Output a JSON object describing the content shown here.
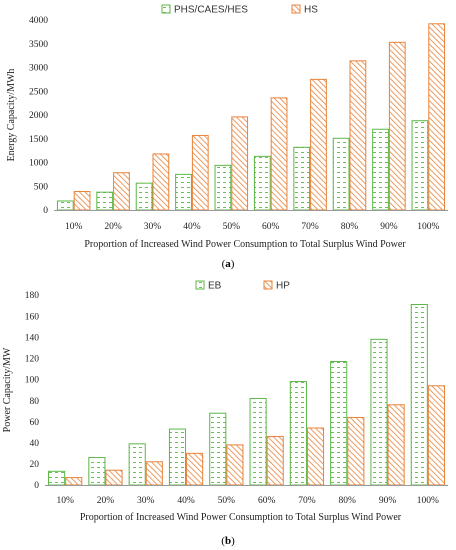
{
  "colors": {
    "green": "#5bb746",
    "orange": "#e8833a",
    "axis": "#999999",
    "grid": "#d9d9d9"
  },
  "chart_data": [
    {
      "type": "bar",
      "panel_label": "(a)",
      "categories": [
        "10%",
        "20%",
        "30%",
        "40%",
        "50%",
        "60%",
        "70%",
        "80%",
        "90%",
        "100%"
      ],
      "series": [
        {
          "name": "PHS/CAES/HES",
          "color": "#5bb746",
          "pattern": "dashes",
          "values": [
            190,
            375,
            565,
            750,
            940,
            1130,
            1320,
            1510,
            1700,
            1880
          ]
        },
        {
          "name": "HS",
          "color": "#e8833a",
          "pattern": "diagonal",
          "values": [
            390,
            785,
            1180,
            1570,
            1960,
            2360,
            2750,
            3140,
            3530,
            3920
          ]
        }
      ],
      "xlabel": "Proportion of Increased Wind Power Consumption to Total Surplus Wind Power",
      "ylabel": "Energy Capacity/MWh",
      "ylim": [
        0,
        4000
      ],
      "yticks": [
        "0",
        "500",
        "1000",
        "1500",
        "2000",
        "2500",
        "3000",
        "3500",
        "4000"
      ],
      "grid": "none",
      "legend": "top-center"
    },
    {
      "type": "bar",
      "panel_label": "(b)",
      "categories": [
        "10%",
        "20%",
        "30%",
        "40%",
        "50%",
        "60%",
        "70%",
        "80%",
        "90%",
        "100%"
      ],
      "series": [
        {
          "name": "EB",
          "color": "#5bb746",
          "pattern": "dashes",
          "values": [
            13,
            26,
            39,
            53,
            68,
            82,
            98,
            117,
            138,
            171
          ]
        },
        {
          "name": "HP",
          "color": "#e8833a",
          "pattern": "diagonal",
          "values": [
            7,
            14,
            22,
            30,
            38,
            46,
            54,
            64,
            76,
            94
          ]
        }
      ],
      "xlabel": "Proportion of Increased Wind Power Consumption to Total Surplus Wind Power",
      "ylabel": "Power Capacity/MW",
      "ylim": [
        0,
        180
      ],
      "yticks": [
        "0",
        "20",
        "40",
        "60",
        "80",
        "100",
        "120",
        "140",
        "160",
        "180"
      ],
      "grid": "none",
      "legend": "top-center"
    }
  ]
}
